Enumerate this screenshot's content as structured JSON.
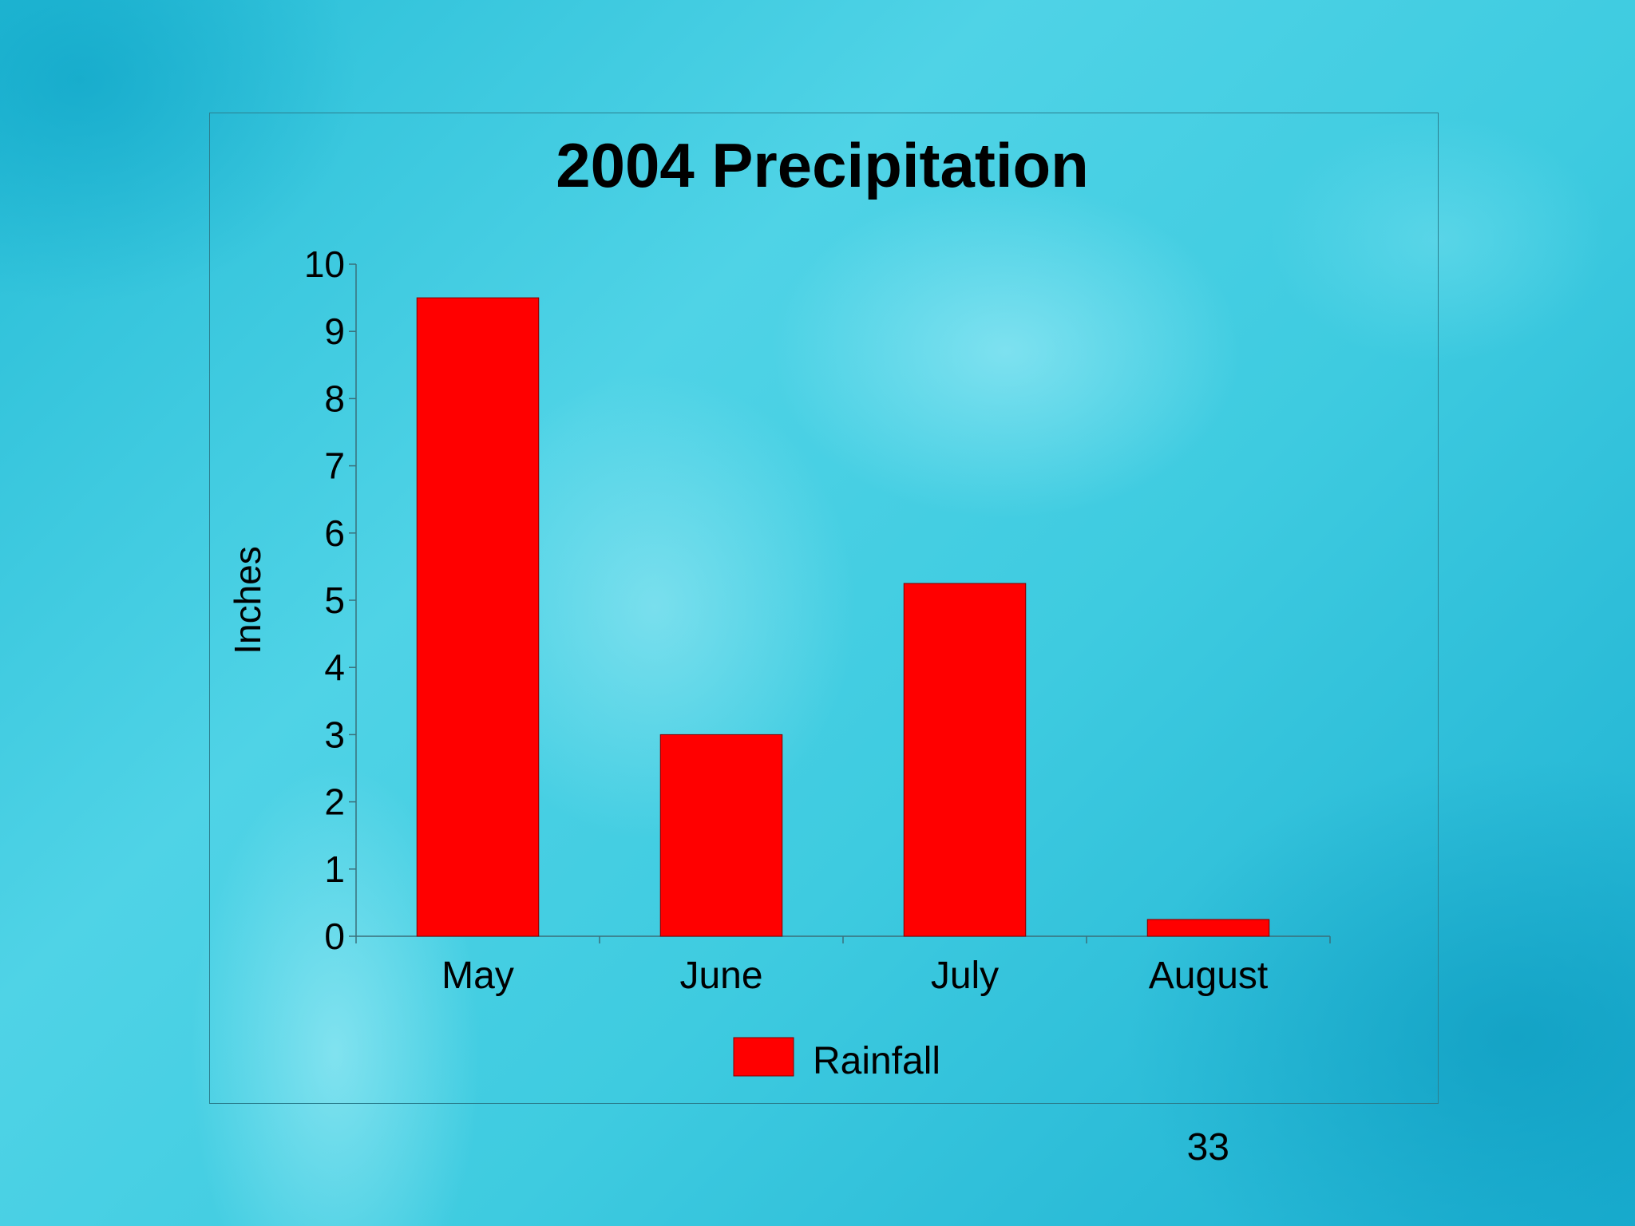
{
  "slide": {
    "page_number": "33"
  },
  "chart_data": {
    "type": "bar",
    "title": "2004 Precipitation",
    "ylabel": "Inches",
    "xlabel": "",
    "categories": [
      "May",
      "June",
      "July",
      "August"
    ],
    "series": [
      {
        "name": "Rainfall",
        "values": [
          9.5,
          3.0,
          5.25,
          0.25
        ],
        "color": "#ff0000"
      }
    ],
    "ylim": [
      0,
      10
    ],
    "yticks": [
      "0",
      "1",
      "2",
      "3",
      "4",
      "5",
      "6",
      "7",
      "8",
      "9",
      "10"
    ],
    "grid": false,
    "legend": "bottom"
  }
}
